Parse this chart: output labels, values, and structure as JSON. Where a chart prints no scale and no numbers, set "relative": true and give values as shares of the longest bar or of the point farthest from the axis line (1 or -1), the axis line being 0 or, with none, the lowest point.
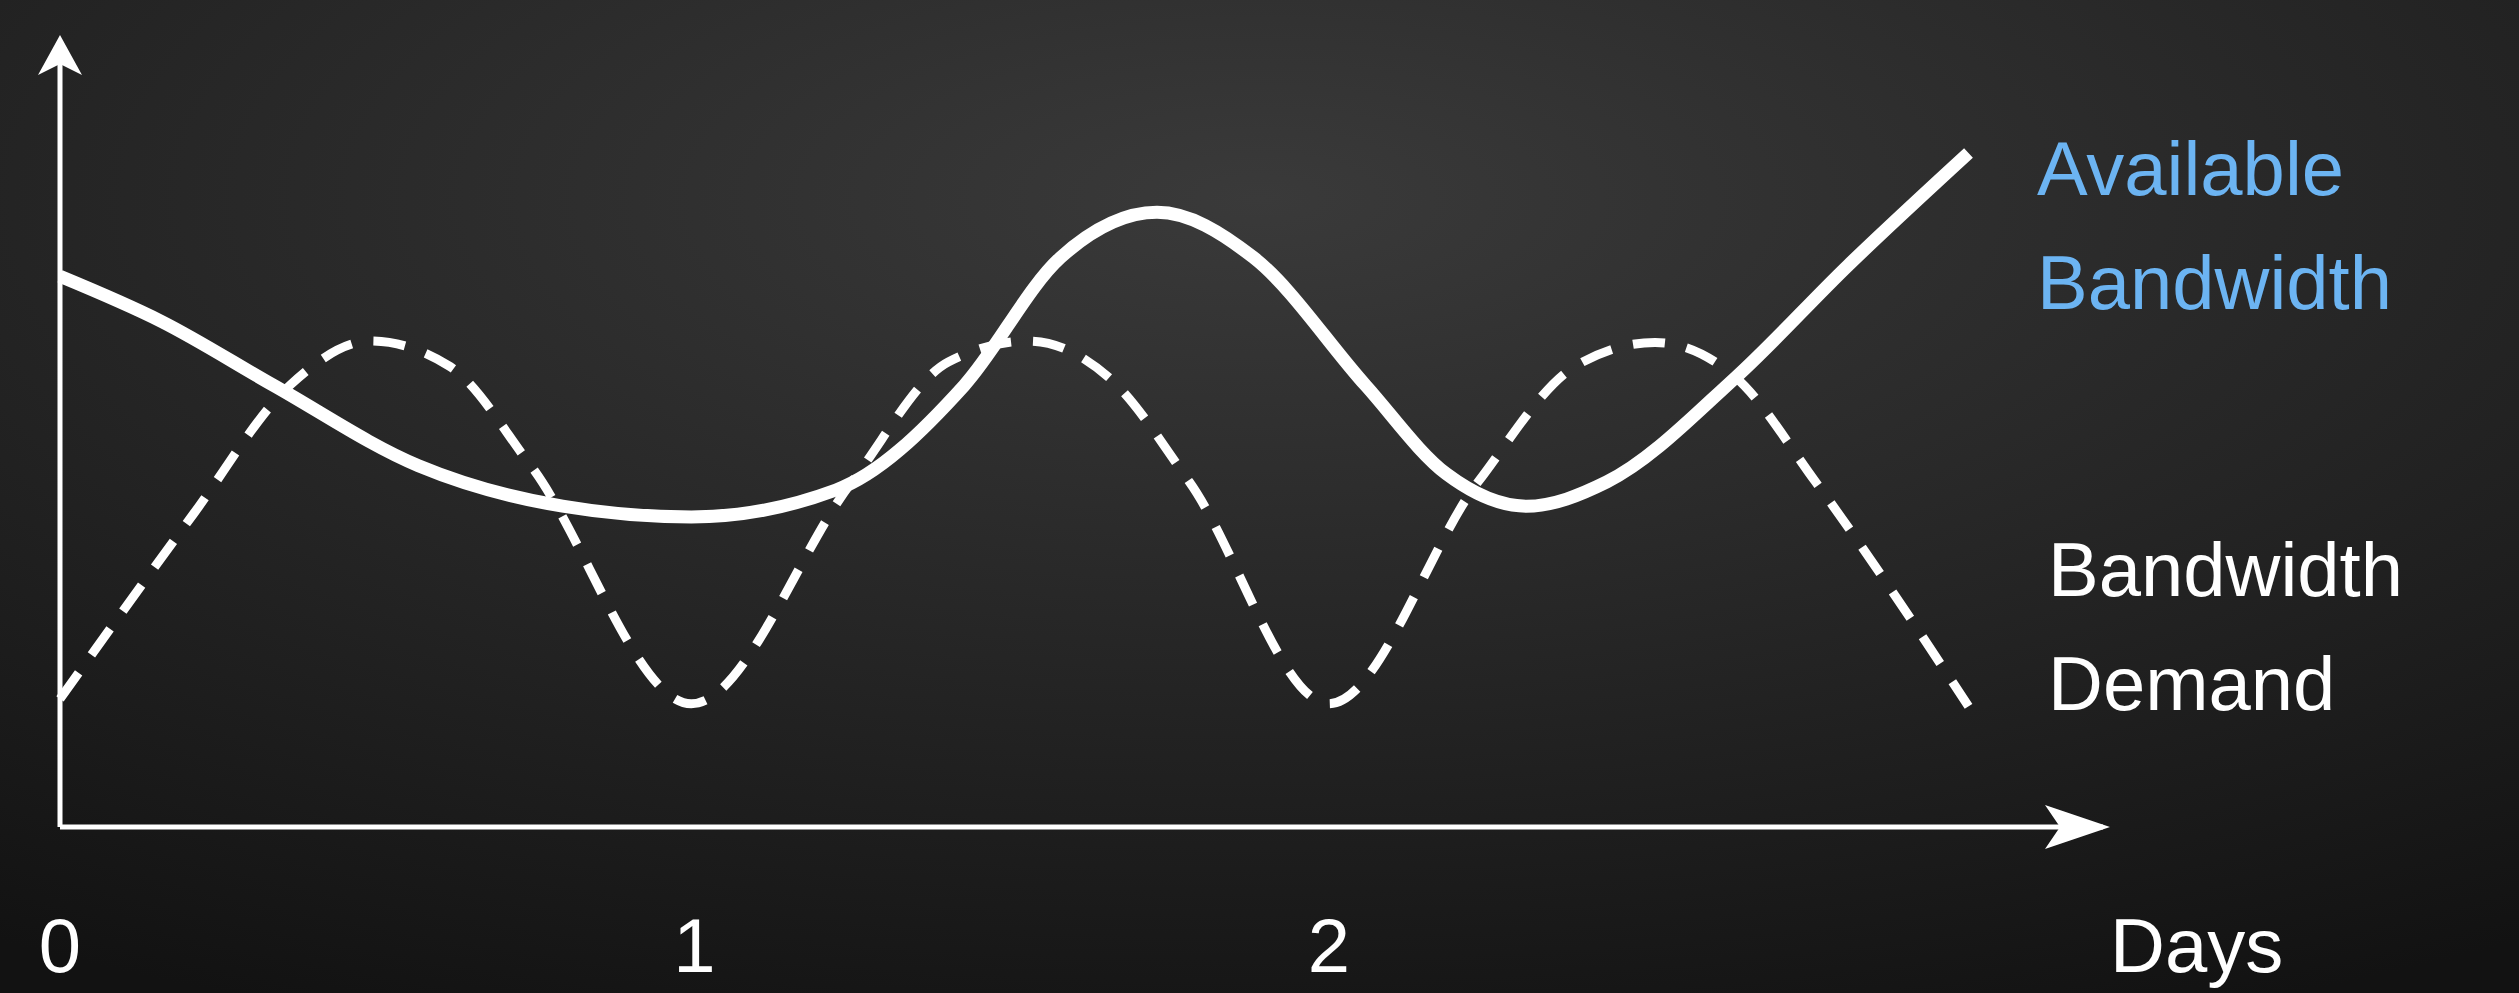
{
  "chart_data": {
    "type": "line",
    "relative": true,
    "xlabel": "Days",
    "xlim": [
      0,
      3.22
    ],
    "xticks": [
      0,
      1,
      2
    ],
    "tick_labels": "x",
    "marker": "none",
    "series": [
      {
        "name": "Available Bandwidth",
        "color": "#ffffff",
        "line_style": "solid",
        "x": [
          0,
          0.16,
          0.337,
          0.565,
          0.792,
          0.995,
          1.223,
          1.425,
          1.577,
          1.729,
          1.881,
          2.058,
          2.185,
          2.311,
          2.438,
          2.641,
          2.818,
          3.008
        ],
        "values": [
          0.817,
          0.75,
          0.655,
          0.536,
          0.476,
          0.46,
          0.5,
          0.655,
          0.845,
          0.912,
          0.845,
          0.655,
          0.524,
          0.476,
          0.512,
          0.667,
          0.833,
          1
        ]
      },
      {
        "name": "Bandwidth Demand",
        "color": "#ffffff",
        "line_style": "dashed",
        "x": [
          0,
          0.21,
          0.362,
          0.489,
          0.615,
          0.742,
          0.995,
          1.248,
          1.4,
          1.527,
          1.653,
          1.78,
          2.0,
          2.235,
          2.387,
          2.514,
          2.641,
          2.767,
          3.008
        ],
        "values": [
          0.19,
          0.464,
          0.655,
          0.721,
          0.683,
          0.536,
          0.183,
          0.512,
          0.69,
          0.721,
          0.667,
          0.512,
          0.183,
          0.512,
          0.683,
          0.719,
          0.667,
          0.512,
          0.179
        ]
      }
    ]
  }
}
